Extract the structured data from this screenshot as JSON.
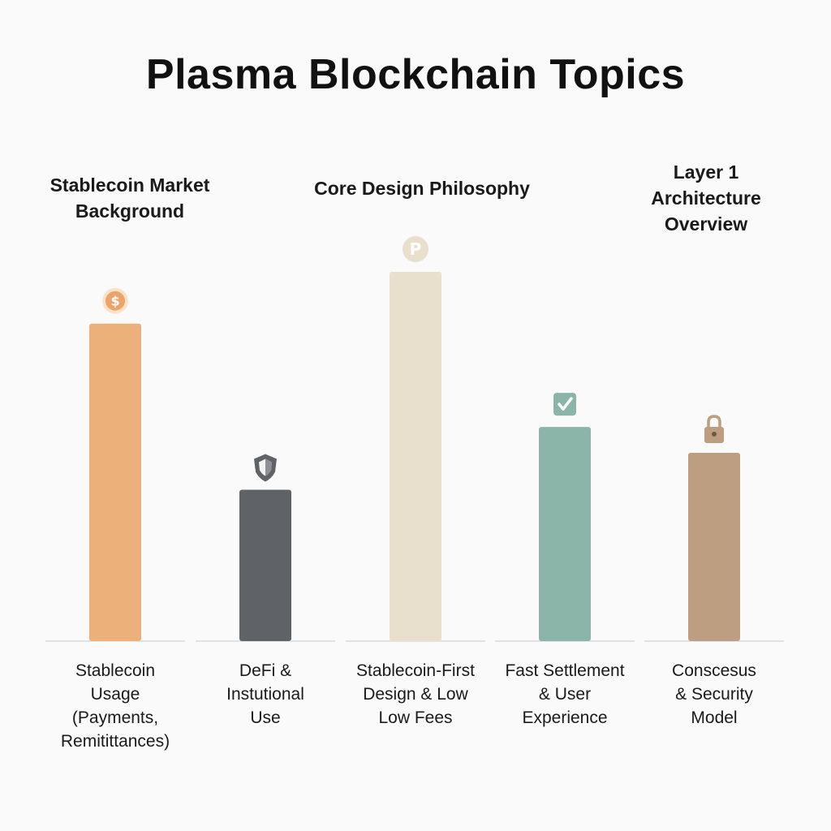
{
  "title": "Plasma Blockchain Topics",
  "group_headers": [
    "Stablecoin Market Background",
    "Core Design Philosophy",
    "Layer 1 Architecture Overview"
  ],
  "chart_data": {
    "type": "bar",
    "title": "Plasma Blockchain Topics",
    "categories": [
      [
        "Stablecoin",
        "Usage",
        "(Payments,",
        "Remitittances)"
      ],
      [
        "DeFi &",
        "Instutional",
        "Use"
      ],
      [
        "Stablecoin-First",
        "Design & Low",
        "Low Fees"
      ],
      [
        "Fast Settlement",
        "& User",
        "Experience"
      ],
      [
        "Conscesus",
        "& Security",
        "Model"
      ]
    ],
    "values": [
      0.86,
      0.41,
      1.0,
      0.58,
      0.51
    ],
    "ylim": [
      0,
      1
    ],
    "colors": [
      "#ecb07a",
      "#5f6266",
      "#e8dfcc",
      "#8bb5a9",
      "#bd9e80"
    ],
    "icons": [
      "dollar-coin-icon",
      "shield-icon",
      "plasma-p-icon",
      "checkbox-icon",
      "lock-icon"
    ],
    "grid": false,
    "legend": "none"
  }
}
